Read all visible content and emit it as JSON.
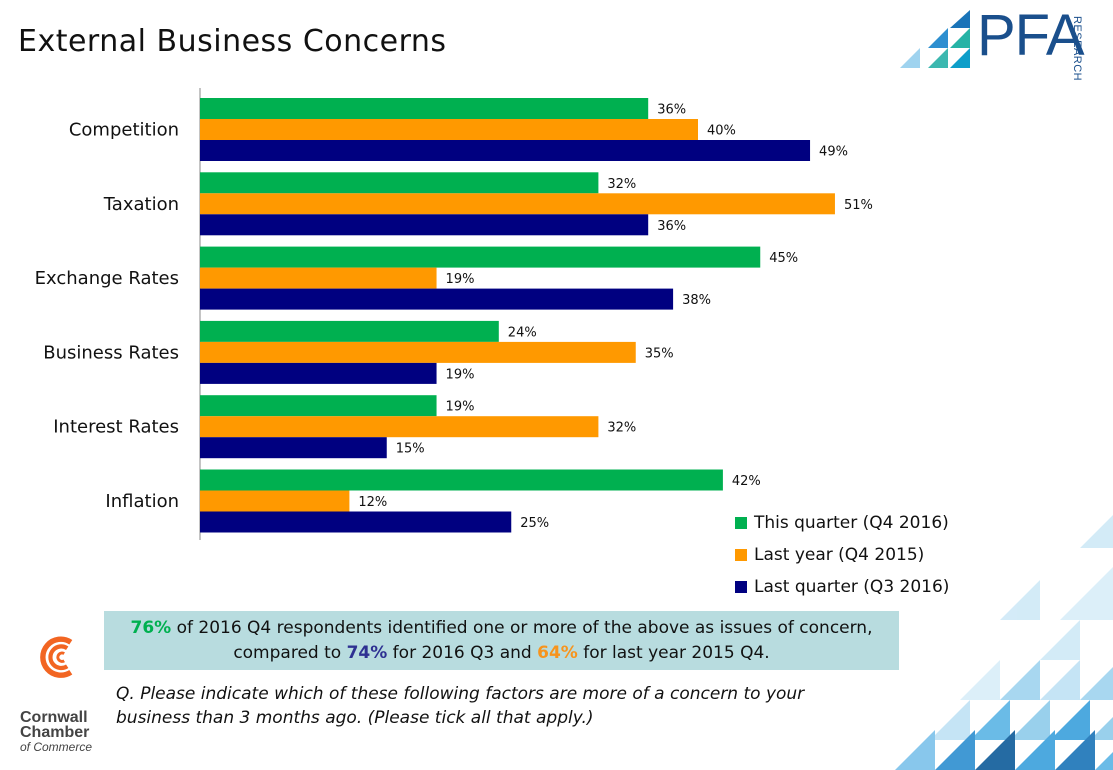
{
  "title": "External Business Concerns",
  "brand": {
    "logo_text": "PFA",
    "logo_sub": "RESEARCH"
  },
  "chamber": {
    "line1": "Cornwall",
    "line2": "Chamber",
    "line3": "of Commerce"
  },
  "colors": {
    "this_quarter": "#00b050",
    "last_year": "#ff9900",
    "last_quarter": "#000080",
    "summary_bg": "#b8dcdf"
  },
  "chart_data": {
    "type": "bar",
    "orientation": "horizontal",
    "categories": [
      "Competition",
      "Taxation",
      "Exchange Rates",
      "Business Rates",
      "Interest Rates",
      "Inflation"
    ],
    "series": [
      {
        "name": "This quarter (Q4 2016)",
        "values": [
          36,
          32,
          45,
          24,
          19,
          42
        ],
        "color": "#00b050"
      },
      {
        "name": "Last year (Q4 2015)",
        "values": [
          40,
          51,
          19,
          35,
          32,
          12
        ],
        "color": "#ff9900"
      },
      {
        "name": "Last quarter (Q3 2016)",
        "values": [
          49,
          36,
          38,
          19,
          15,
          25
        ],
        "color": "#000080"
      }
    ],
    "value_suffix": "%",
    "xlim": [
      0,
      100
    ],
    "legend_position": "bottom-right",
    "grid": false
  },
  "summary": {
    "v1": "76%",
    "t1": " of 2016 Q4 respondents identified one or more of the above as issues of concern,",
    "t2": "compared to ",
    "v2": "74%",
    "t3": " for 2016 Q3 and ",
    "v3": "64%",
    "t4": " for last year 2015 Q4."
  },
  "question": "Q. Please indicate which of these following factors are more of a concern to your business than 3 months ago. (Please tick all that apply.)"
}
